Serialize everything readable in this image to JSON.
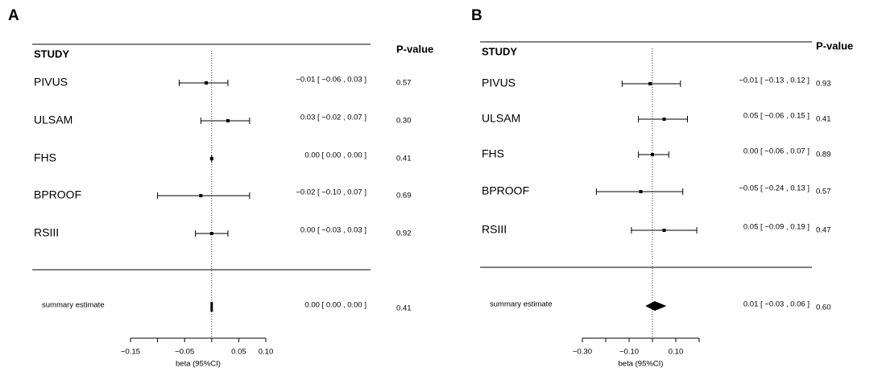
{
  "chart_data": [
    {
      "type": "forest",
      "panel": "A",
      "header_study": "STUDY",
      "header_p": "P-value",
      "categories": [
        "PIVUS",
        "ULSAM",
        "FHS",
        "BPROOF",
        "RSIII"
      ],
      "values": [
        -0.01,
        0.03,
        0.0,
        -0.02,
        0.0
      ],
      "lower": [
        -0.06,
        -0.02,
        0.0,
        -0.1,
        -0.03
      ],
      "upper": [
        0.03,
        0.07,
        0.0,
        0.07,
        0.03
      ],
      "value_labels": [
        "−0.01 [ −0.06 , 0.03 ]",
        "0.03 [ −0.02 , 0.07 ]",
        "0.00 [ 0.00 , 0.00 ]",
        "−0.02 [ −0.10 , 0.07 ]",
        "0.00 [ −0.03 , 0.03 ]"
      ],
      "p_values": [
        "0.57",
        "0.30",
        "0.41",
        "0.69",
        "0.92"
      ],
      "summary": {
        "label": "summary estimate",
        "value": 0.0,
        "lower": 0.0,
        "upper": 0.0,
        "value_label": "0.00 [ 0.00 , 0.00 ]",
        "p_value": "0.41"
      },
      "xlabel": "beta (95%CI)",
      "xlim": [
        -0.15,
        0.1
      ],
      "xticks": [
        {
          "value": -0.15,
          "label": "−0.15"
        },
        {
          "value": -0.1,
          "label": null
        },
        {
          "value": -0.05,
          "label": "−0.05"
        },
        {
          "value": 0.0,
          "label": null
        },
        {
          "value": 0.05,
          "label": "0.05"
        },
        {
          "value": 0.1,
          "label": "0.10"
        }
      ]
    },
    {
      "type": "forest",
      "panel": "B",
      "header_study": "STUDY",
      "header_p": "P-value",
      "categories": [
        "PIVUS",
        "ULSAM",
        "FHS",
        "BPROOF",
        "RSIII"
      ],
      "values": [
        -0.01,
        0.05,
        0.0,
        -0.05,
        0.05
      ],
      "lower": [
        -0.13,
        -0.06,
        -0.06,
        -0.24,
        -0.09
      ],
      "upper": [
        0.12,
        0.15,
        0.07,
        0.13,
        0.19
      ],
      "value_labels": [
        "−0.01 [ −0.13 , 0.12 ]",
        "0.05 [ −0.06 , 0.15 ]",
        "0.00 [ −0.06 , 0.07 ]",
        "−0.05 [ −0.24 , 0.13 ]",
        "0.05 [ −0.09 , 0.19 ]"
      ],
      "p_values": [
        "0.93",
        "0.41",
        "0.89",
        "0.57",
        "0.47"
      ],
      "summary": {
        "label": "summary estimate",
        "value": 0.01,
        "lower": -0.03,
        "upper": 0.06,
        "value_label": "0.01 [ −0.03 , 0.06 ]",
        "p_value": "0.60"
      },
      "xlabel": "beta (95%CI)",
      "xlim": [
        -0.3,
        0.2
      ],
      "xticks": [
        {
          "value": -0.3,
          "label": "−0.30"
        },
        {
          "value": -0.2,
          "label": null
        },
        {
          "value": -0.1,
          "label": "−0.10"
        },
        {
          "value": 0.0,
          "label": null
        },
        {
          "value": 0.1,
          "label": "0.10"
        },
        {
          "value": 0.2,
          "label": null
        }
      ]
    }
  ]
}
